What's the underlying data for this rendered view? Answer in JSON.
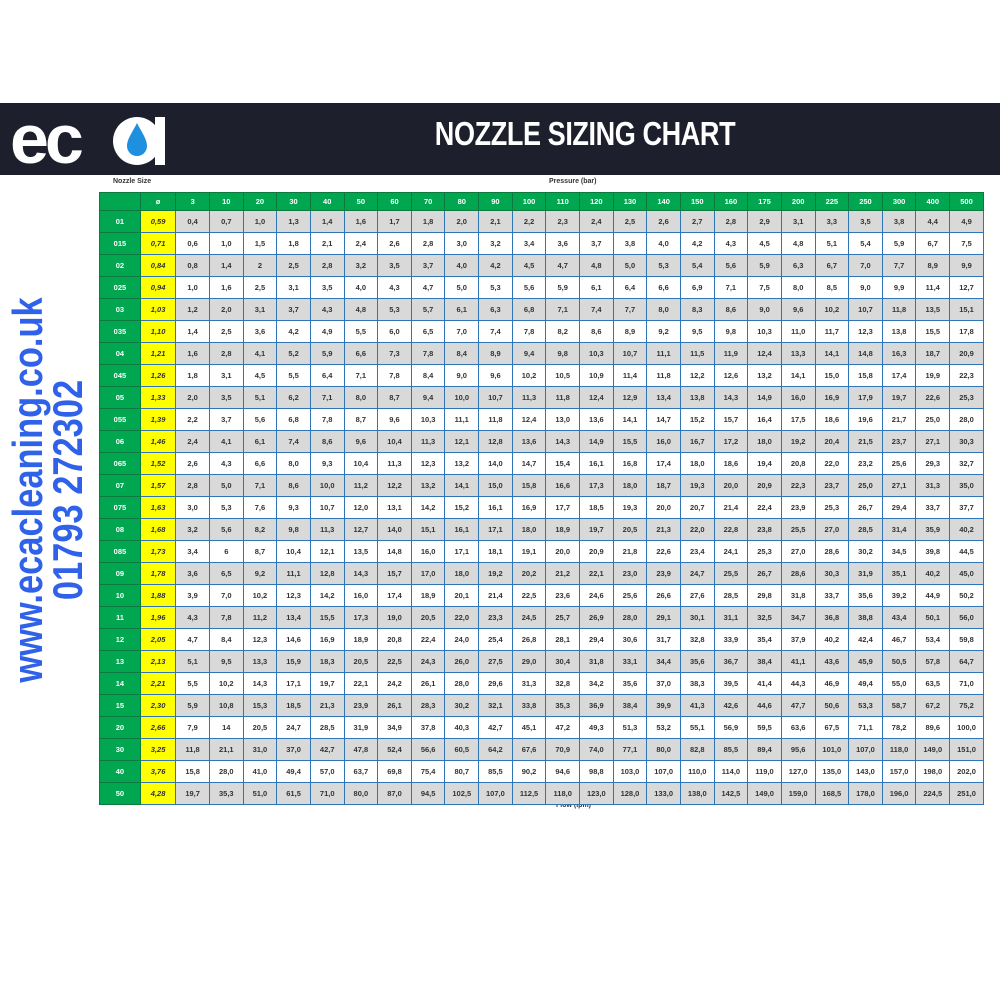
{
  "banner": {
    "logo_text": "eca",
    "title": "NOZZLE SIZING CHART"
  },
  "side": {
    "website": "www.ecacleaning.co.uk",
    "phone": "01793 272302"
  },
  "colors": {
    "banner": "#1d202c",
    "header_green": "#00a650",
    "diameter_yellow": "#ffff00",
    "border_blue": "#2e75b6",
    "side_text_blue": "#2f62e8",
    "drop_blue": "#1f8fe0"
  },
  "labels": {
    "nozzle_size": "Nozzle Size",
    "pressure": "Pressure (bar)",
    "flow": "Flow (lpm)"
  },
  "table": {
    "headers": [
      "",
      "ø",
      "3",
      "10",
      "20",
      "30",
      "40",
      "50",
      "60",
      "70",
      "80",
      "90",
      "100",
      "110",
      "120",
      "130",
      "140",
      "150",
      "160",
      "175",
      "200",
      "225",
      "250",
      "300",
      "400",
      "500"
    ],
    "rows": [
      [
        "01",
        "0,59",
        "0,4",
        "0,7",
        "1,0",
        "1,3",
        "1,4",
        "1,6",
        "1,7",
        "1,8",
        "2,0",
        "2,1",
        "2,2",
        "2,3",
        "2,4",
        "2,5",
        "2,6",
        "2,7",
        "2,8",
        "2,9",
        "3,1",
        "3,3",
        "3,5",
        "3,8",
        "4,4",
        "4,9"
      ],
      [
        "015",
        "0,71",
        "0,6",
        "1,0",
        "1,5",
        "1,8",
        "2,1",
        "2,4",
        "2,6",
        "2,8",
        "3,0",
        "3,2",
        "3,4",
        "3,6",
        "3,7",
        "3,8",
        "4,0",
        "4,2",
        "4,3",
        "4,5",
        "4,8",
        "5,1",
        "5,4",
        "5,9",
        "6,7",
        "7,5"
      ],
      [
        "02",
        "0,84",
        "0,8",
        "1,4",
        "2",
        "2,5",
        "2,8",
        "3,2",
        "3,5",
        "3,7",
        "4,0",
        "4,2",
        "4,5",
        "4,7",
        "4,8",
        "5,0",
        "5,3",
        "5,4",
        "5,6",
        "5,9",
        "6,3",
        "6,7",
        "7,0",
        "7,7",
        "8,9",
        "9,9"
      ],
      [
        "025",
        "0,94",
        "1,0",
        "1,6",
        "2,5",
        "3,1",
        "3,5",
        "4,0",
        "4,3",
        "4,7",
        "5,0",
        "5,3",
        "5,6",
        "5,9",
        "6,1",
        "6,4",
        "6,6",
        "6,9",
        "7,1",
        "7,5",
        "8,0",
        "8,5",
        "9,0",
        "9,9",
        "11,4",
        "12,7"
      ],
      [
        "03",
        "1,03",
        "1,2",
        "2,0",
        "3,1",
        "3,7",
        "4,3",
        "4,8",
        "5,3",
        "5,7",
        "6,1",
        "6,3",
        "6,8",
        "7,1",
        "7,4",
        "7,7",
        "8,0",
        "8,3",
        "8,6",
        "9,0",
        "9,6",
        "10,2",
        "10,7",
        "11,8",
        "13,5",
        "15,1"
      ],
      [
        "035",
        "1,10",
        "1,4",
        "2,5",
        "3,6",
        "4,2",
        "4,9",
        "5,5",
        "6,0",
        "6,5",
        "7,0",
        "7,4",
        "7,8",
        "8,2",
        "8,6",
        "8,9",
        "9,2",
        "9,5",
        "9,8",
        "10,3",
        "11,0",
        "11,7",
        "12,3",
        "13,8",
        "15,5",
        "17,8"
      ],
      [
        "04",
        "1,21",
        "1,6",
        "2,8",
        "4,1",
        "5,2",
        "5,9",
        "6,6",
        "7,3",
        "7,8",
        "8,4",
        "8,9",
        "9,4",
        "9,8",
        "10,3",
        "10,7",
        "11,1",
        "11,5",
        "11,9",
        "12,4",
        "13,3",
        "14,1",
        "14,8",
        "16,3",
        "18,7",
        "20,9"
      ],
      [
        "045",
        "1,26",
        "1,8",
        "3,1",
        "4,5",
        "5,5",
        "6,4",
        "7,1",
        "7,8",
        "8,4",
        "9,0",
        "9,6",
        "10,2",
        "10,5",
        "10,9",
        "11,4",
        "11,8",
        "12,2",
        "12,6",
        "13,2",
        "14,1",
        "15,0",
        "15,8",
        "17,4",
        "19,9",
        "22,3"
      ],
      [
        "05",
        "1,33",
        "2,0",
        "3,5",
        "5,1",
        "6,2",
        "7,1",
        "8,0",
        "8,7",
        "9,4",
        "10,0",
        "10,7",
        "11,3",
        "11,8",
        "12,4",
        "12,9",
        "13,4",
        "13,8",
        "14,3",
        "14,9",
        "16,0",
        "16,9",
        "17,9",
        "19,7",
        "22,6",
        "25,3"
      ],
      [
        "055",
        "1,39",
        "2,2",
        "3,7",
        "5,6",
        "6,8",
        "7,8",
        "8,7",
        "9,6",
        "10,3",
        "11,1",
        "11,8",
        "12,4",
        "13,0",
        "13,6",
        "14,1",
        "14,7",
        "15,2",
        "15,7",
        "16,4",
        "17,5",
        "18,6",
        "19,6",
        "21,7",
        "25,0",
        "28,0"
      ],
      [
        "06",
        "1,46",
        "2,4",
        "4,1",
        "6,1",
        "7,4",
        "8,6",
        "9,6",
        "10,4",
        "11,3",
        "12,1",
        "12,8",
        "13,6",
        "14,3",
        "14,9",
        "15,5",
        "16,0",
        "16,7",
        "17,2",
        "18,0",
        "19,2",
        "20,4",
        "21,5",
        "23,7",
        "27,1",
        "30,3"
      ],
      [
        "065",
        "1,52",
        "2,6",
        "4,3",
        "6,6",
        "8,0",
        "9,3",
        "10,4",
        "11,3",
        "12,3",
        "13,2",
        "14,0",
        "14,7",
        "15,4",
        "16,1",
        "16,8",
        "17,4",
        "18,0",
        "18,6",
        "19,4",
        "20,8",
        "22,0",
        "23,2",
        "25,6",
        "29,3",
        "32,7"
      ],
      [
        "07",
        "1,57",
        "2,8",
        "5,0",
        "7,1",
        "8,6",
        "10,0",
        "11,2",
        "12,2",
        "13,2",
        "14,1",
        "15,0",
        "15,8",
        "16,6",
        "17,3",
        "18,0",
        "18,7",
        "19,3",
        "20,0",
        "20,9",
        "22,3",
        "23,7",
        "25,0",
        "27,1",
        "31,3",
        "35,0"
      ],
      [
        "075",
        "1,63",
        "3,0",
        "5,3",
        "7,6",
        "9,3",
        "10,7",
        "12,0",
        "13,1",
        "14,2",
        "15,2",
        "16,1",
        "16,9",
        "17,7",
        "18,5",
        "19,3",
        "20,0",
        "20,7",
        "21,4",
        "22,4",
        "23,9",
        "25,3",
        "26,7",
        "29,4",
        "33,7",
        "37,7"
      ],
      [
        "08",
        "1,68",
        "3,2",
        "5,6",
        "8,2",
        "9,8",
        "11,3",
        "12,7",
        "14,0",
        "15,1",
        "16,1",
        "17,1",
        "18,0",
        "18,9",
        "19,7",
        "20,5",
        "21,3",
        "22,0",
        "22,8",
        "23,8",
        "25,5",
        "27,0",
        "28,5",
        "31,4",
        "35,9",
        "40,2"
      ],
      [
        "085",
        "1,73",
        "3,4",
        "6",
        "8,7",
        "10,4",
        "12,1",
        "13,5",
        "14,8",
        "16,0",
        "17,1",
        "18,1",
        "19,1",
        "20,0",
        "20,9",
        "21,8",
        "22,6",
        "23,4",
        "24,1",
        "25,3",
        "27,0",
        "28,6",
        "30,2",
        "34,5",
        "39,8",
        "44,5"
      ],
      [
        "09",
        "1,78",
        "3,6",
        "6,5",
        "9,2",
        "11,1",
        "12,8",
        "14,3",
        "15,7",
        "17,0",
        "18,0",
        "19,2",
        "20,2",
        "21,2",
        "22,1",
        "23,0",
        "23,9",
        "24,7",
        "25,5",
        "26,7",
        "28,6",
        "30,3",
        "31,9",
        "35,1",
        "40,2",
        "45,0"
      ],
      [
        "10",
        "1,88",
        "3,9",
        "7,0",
        "10,2",
        "12,3",
        "14,2",
        "16,0",
        "17,4",
        "18,9",
        "20,1",
        "21,4",
        "22,5",
        "23,6",
        "24,6",
        "25,6",
        "26,6",
        "27,6",
        "28,5",
        "29,8",
        "31,8",
        "33,7",
        "35,6",
        "39,2",
        "44,9",
        "50,2"
      ],
      [
        "11",
        "1,96",
        "4,3",
        "7,8",
        "11,2",
        "13,4",
        "15,5",
        "17,3",
        "19,0",
        "20,5",
        "22,0",
        "23,3",
        "24,5",
        "25,7",
        "26,9",
        "28,0",
        "29,1",
        "30,1",
        "31,1",
        "32,5",
        "34,7",
        "36,8",
        "38,8",
        "43,4",
        "50,1",
        "56,0"
      ],
      [
        "12",
        "2,05",
        "4,7",
        "8,4",
        "12,3",
        "14,6",
        "16,9",
        "18,9",
        "20,8",
        "22,4",
        "24,0",
        "25,4",
        "26,8",
        "28,1",
        "29,4",
        "30,6",
        "31,7",
        "32,8",
        "33,9",
        "35,4",
        "37,9",
        "40,2",
        "42,4",
        "46,7",
        "53,4",
        "59,8"
      ],
      [
        "13",
        "2,13",
        "5,1",
        "9,5",
        "13,3",
        "15,9",
        "18,3",
        "20,5",
        "22,5",
        "24,3",
        "26,0",
        "27,5",
        "29,0",
        "30,4",
        "31,8",
        "33,1",
        "34,4",
        "35,6",
        "36,7",
        "38,4",
        "41,1",
        "43,6",
        "45,9",
        "50,5",
        "57,8",
        "64,7"
      ],
      [
        "14",
        "2,21",
        "5,5",
        "10,2",
        "14,3",
        "17,1",
        "19,7",
        "22,1",
        "24,2",
        "26,1",
        "28,0",
        "29,6",
        "31,3",
        "32,8",
        "34,2",
        "35,6",
        "37,0",
        "38,3",
        "39,5",
        "41,4",
        "44,3",
        "46,9",
        "49,4",
        "55,0",
        "63,5",
        "71,0"
      ],
      [
        "15",
        "2,30",
        "5,9",
        "10,8",
        "15,3",
        "18,5",
        "21,3",
        "23,9",
        "26,1",
        "28,3",
        "30,2",
        "32,1",
        "33,8",
        "35,3",
        "36,9",
        "38,4",
        "39,9",
        "41,3",
        "42,6",
        "44,6",
        "47,7",
        "50,6",
        "53,3",
        "58,7",
        "67,2",
        "75,2"
      ],
      [
        "20",
        "2,66",
        "7,9",
        "14",
        "20,5",
        "24,7",
        "28,5",
        "31,9",
        "34,9",
        "37,8",
        "40,3",
        "42,7",
        "45,1",
        "47,2",
        "49,3",
        "51,3",
        "53,2",
        "55,1",
        "56,9",
        "59,5",
        "63,6",
        "67,5",
        "71,1",
        "78,2",
        "89,6",
        "100,0"
      ],
      [
        "30",
        "3,25",
        "11,8",
        "21,1",
        "31,0",
        "37,0",
        "42,7",
        "47,8",
        "52,4",
        "56,6",
        "60,5",
        "64,2",
        "67,6",
        "70,9",
        "74,0",
        "77,1",
        "80,0",
        "82,8",
        "85,5",
        "89,4",
        "95,6",
        "101,0",
        "107,0",
        "118,0",
        "149,0",
        "151,0"
      ],
      [
        "40",
        "3,76",
        "15,8",
        "28,0",
        "41,0",
        "49,4",
        "57,0",
        "63,7",
        "69,8",
        "75,4",
        "80,7",
        "85,5",
        "90,2",
        "94,6",
        "98,8",
        "103,0",
        "107,0",
        "110,0",
        "114,0",
        "119,0",
        "127,0",
        "135,0",
        "143,0",
        "157,0",
        "198,0",
        "202,0"
      ],
      [
        "50",
        "4,28",
        "19,7",
        "35,3",
        "51,0",
        "61,5",
        "71,0",
        "80,0",
        "87,0",
        "94,5",
        "102,5",
        "107,0",
        "112,5",
        "118,0",
        "123,0",
        "128,0",
        "133,0",
        "138,0",
        "142,5",
        "149,0",
        "159,0",
        "168,5",
        "178,0",
        "196,0",
        "224,5",
        "251,0"
      ]
    ]
  }
}
